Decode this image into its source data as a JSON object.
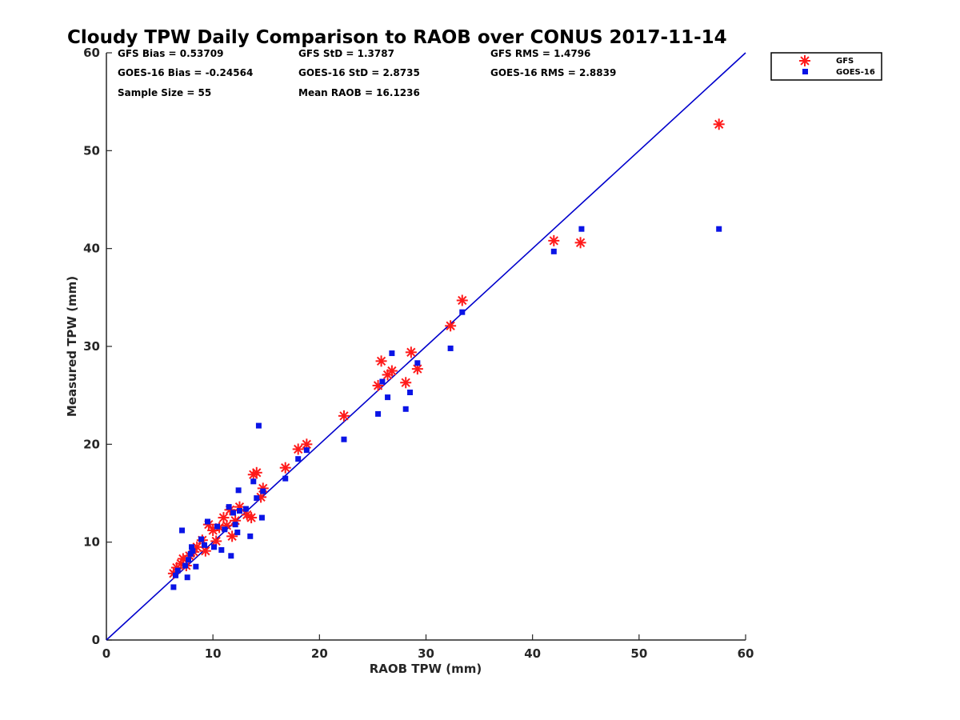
{
  "chart_data": {
    "type": "scatter",
    "title": "Cloudy TPW Daily Comparison to RAOB over CONUS 2017-11-14",
    "xlabel": "RAOB TPW (mm)",
    "ylabel": "Measured TPW (mm)",
    "xlim": [
      0,
      60
    ],
    "ylim": [
      0,
      60
    ],
    "xticks": [
      "0",
      "10",
      "20",
      "30",
      "40",
      "50",
      "60"
    ],
    "yticks": [
      "0",
      "10",
      "20",
      "30",
      "40",
      "50",
      "60"
    ],
    "grid": false,
    "legend_position": "outside-top-right",
    "reference_line": {
      "from": [
        0,
        0
      ],
      "to": [
        60,
        60
      ],
      "color": "#0000cc"
    },
    "stats": {
      "gfs_bias": "GFS Bias = 0.53709",
      "gfs_std": "GFS StD = 1.3787",
      "gfs_rms": "GFS RMS = 1.4796",
      "goes_bias": "GOES-16 Bias = -0.24564",
      "goes_std": "GOES-16 StD = 2.8735",
      "goes_rms": "GOES-16 RMS = 2.8839",
      "sample_size": "Sample Size = 55",
      "mean_raob": "Mean RAOB = 16.1236"
    },
    "series": [
      {
        "name": "GFS",
        "marker": "asterisk",
        "color": "#ff1a1a",
        "x": [
          6.3,
          6.6,
          7.0,
          7.2,
          7.5,
          7.8,
          8.2,
          8.5,
          9.0,
          9.3,
          9.6,
          10.0,
          10.3,
          10.6,
          11.0,
          11.3,
          11.6,
          11.8,
          12.1,
          12.5,
          13.2,
          13.6,
          13.8,
          14.1,
          14.5,
          14.7,
          16.8,
          18.0,
          18.8,
          22.3,
          25.5,
          25.8,
          26.4,
          26.8,
          28.1,
          28.6,
          29.2,
          32.3,
          33.4,
          42.0,
          44.5,
          57.5
        ],
        "y": [
          6.8,
          7.4,
          7.8,
          8.3,
          7.6,
          8.6,
          9.0,
          9.5,
          10.2,
          9.1,
          11.8,
          11.2,
          10.1,
          11.5,
          12.5,
          11.7,
          13.3,
          10.6,
          12.2,
          13.6,
          12.8,
          12.5,
          16.9,
          17.1,
          14.6,
          15.5,
          17.6,
          19.5,
          20.0,
          22.9,
          26.0,
          28.5,
          27.1,
          27.5,
          26.3,
          29.4,
          27.7,
          32.1,
          34.7,
          40.8,
          40.6,
          52.7
        ]
      },
      {
        "name": "GOES-16",
        "marker": "square",
        "color": "#0a14e6",
        "x": [
          6.3,
          6.5,
          6.7,
          7.1,
          7.4,
          7.6,
          7.7,
          7.9,
          8.0,
          8.1,
          8.4,
          8.9,
          9.2,
          9.5,
          10.1,
          10.4,
          10.8,
          11.1,
          11.5,
          11.7,
          11.9,
          12.1,
          12.3,
          12.4,
          12.5,
          13.1,
          13.5,
          13.8,
          14.1,
          14.3,
          14.6,
          14.7,
          16.8,
          18.0,
          18.8,
          22.3,
          25.5,
          25.9,
          26.4,
          26.8,
          28.1,
          28.5,
          29.2,
          32.3,
          33.4,
          42.0,
          44.6,
          57.5
        ],
        "y": [
          5.4,
          6.6,
          7.1,
          11.2,
          7.6,
          6.4,
          8.2,
          8.8,
          9.5,
          9.1,
          7.5,
          10.3,
          9.7,
          12.1,
          9.5,
          11.6,
          9.2,
          11.3,
          13.6,
          8.6,
          13.0,
          11.8,
          11.0,
          15.3,
          13.2,
          13.4,
          10.6,
          16.2,
          14.5,
          21.9,
          12.5,
          15.2,
          16.5,
          18.5,
          19.4,
          20.5,
          23.1,
          26.4,
          24.8,
          29.3,
          23.6,
          25.3,
          28.3,
          29.8,
          33.5,
          39.7,
          42.0,
          42.0
        ]
      }
    ]
  }
}
